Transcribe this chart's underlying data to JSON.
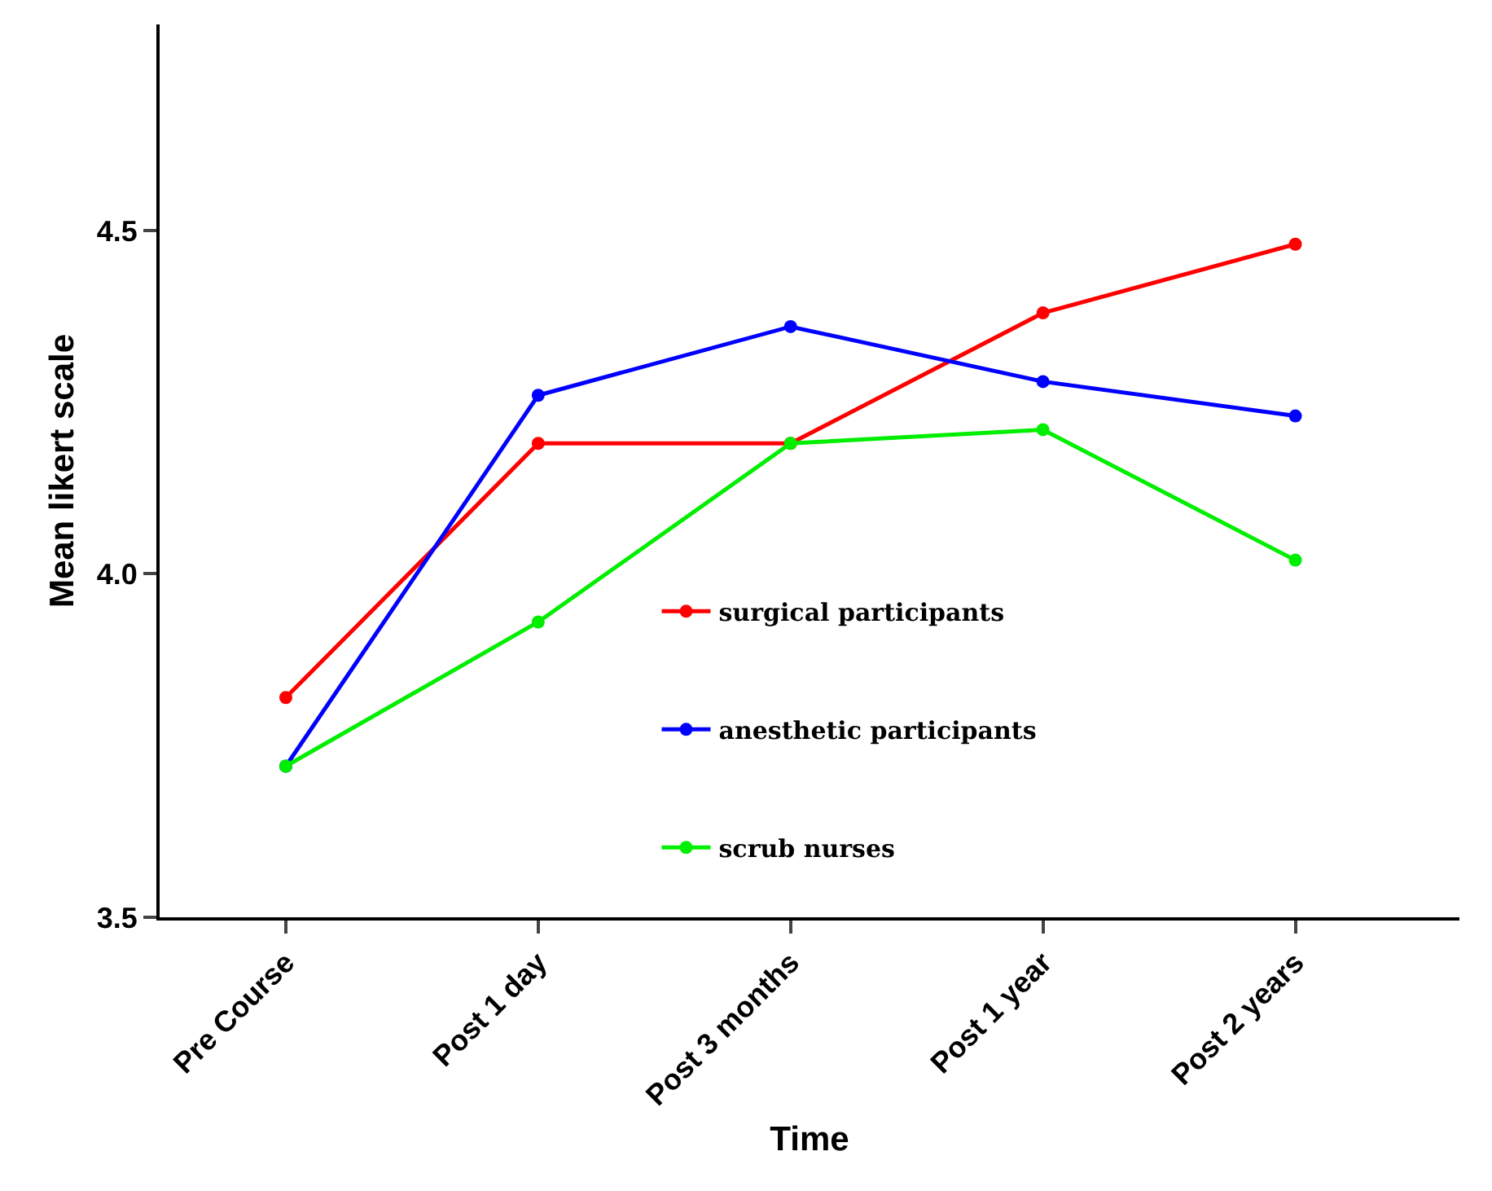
{
  "chart_data": {
    "type": "line",
    "xlabel": "Time",
    "ylabel": "Mean likert scale",
    "categories": [
      "Pre Course",
      "Post 1 day",
      "Post 3 months",
      "Post 1 year",
      "Post 2 years"
    ],
    "series": [
      {
        "name": "surgical participants",
        "color": "#ff0000",
        "values": [
          3.82,
          4.19,
          4.19,
          4.38,
          4.48
        ]
      },
      {
        "name": "anesthetic participants",
        "color": "#0000ff",
        "values": [
          3.72,
          4.26,
          4.36,
          4.28,
          4.23
        ]
      },
      {
        "name": "scrub nurses",
        "color": "#00ee00",
        "values": [
          3.72,
          3.93,
          4.19,
          4.21,
          4.02
        ]
      }
    ],
    "ylim": [
      3.5,
      4.8
    ],
    "yticks": [
      3.5,
      {
        "value": 4,
        "label": "4.0"
      },
      4.5
    ],
    "grid": false,
    "legend": "center",
    "marker": "circle",
    "line_style": "solid"
  }
}
